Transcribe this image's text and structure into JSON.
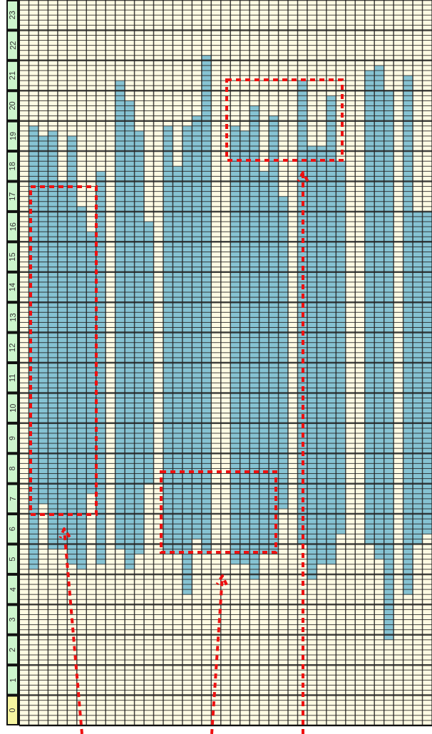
{
  "chart_data": {
    "type": "bar",
    "categories": [
      null,
      null,
      null,
      null,
      null,
      null,
      null,
      null,
      null,
      null,
      null,
      null,
      null,
      null,
      null,
      null,
      null,
      null,
      null,
      null,
      null,
      null,
      null,
      null,
      null,
      null,
      null,
      null,
      null,
      null,
      null,
      null,
      null,
      null,
      null,
      null,
      null,
      null,
      null,
      null,
      null,
      null,
      null
    ],
    "base": [
      null,
      5.17,
      7.33,
      5.83,
      5.83,
      5.33,
      5.17,
      7.67,
      5.33,
      null,
      5.83,
      5.17,
      5.67,
      8.0,
      null,
      5.67,
      5.67,
      4.33,
      6.17,
      5.67,
      null,
      null,
      5.33,
      5.33,
      4.83,
      5.67,
      5.67,
      7.17,
      null,
      6.0,
      4.83,
      5.33,
      5.33,
      6.33,
      null,
      null,
      6.0,
      5.5,
      2.83,
      null,
      4.33,
      6.0,
      6.33
    ],
    "values": [
      null,
      14.66,
      12.17,
      13.84,
      12.17,
      14.17,
      12.0,
      8.66,
      13.0,
      null,
      15.5,
      15.5,
      14.0,
      8.67,
      null,
      14.16,
      12.83,
      15.5,
      14.0,
      16.5,
      null,
      null,
      14.5,
      14.34,
      15.67,
      12.66,
      14.5,
      10.33,
      null,
      15.33,
      14.34,
      13.84,
      15.5,
      12.34,
      null,
      null,
      15.67,
      16.33,
      18.17,
      null,
      17.17,
      11.0,
      10.67
    ],
    "color": "#86c3d3",
    "ylim": [
      0,
      24
    ],
    "yticks": [
      {
        "value": 0.5,
        "label": "0"
      },
      {
        "value": 1.5,
        "label": "1"
      },
      {
        "value": 2.5,
        "label": "2"
      },
      {
        "value": 3.5,
        "label": "3"
      },
      {
        "value": 4.5,
        "label": "4"
      },
      {
        "value": 5.5,
        "label": "5"
      },
      {
        "value": 6.5,
        "label": "6"
      },
      {
        "value": 7.5,
        "label": "7"
      },
      {
        "value": 8.5,
        "label": "8"
      },
      {
        "value": 9.5,
        "label": "9"
      },
      {
        "value": 10.5,
        "label": "10"
      },
      {
        "value": 11.5,
        "label": "11"
      },
      {
        "value": 12.5,
        "label": "12"
      },
      {
        "value": 13.5,
        "label": "13"
      },
      {
        "value": 14.5,
        "label": "14"
      },
      {
        "value": 15.5,
        "label": "15"
      },
      {
        "value": 16.5,
        "label": "16"
      },
      {
        "value": 17.5,
        "label": "17"
      },
      {
        "value": 18.5,
        "label": "18"
      },
      {
        "value": 19.5,
        "label": "19"
      },
      {
        "value": 20.5,
        "label": "20"
      },
      {
        "value": 21.5,
        "label": "21"
      },
      {
        "value": 22.5,
        "label": "22"
      },
      {
        "value": 23.5,
        "label": "23"
      }
    ],
    "grid": true
  }
}
